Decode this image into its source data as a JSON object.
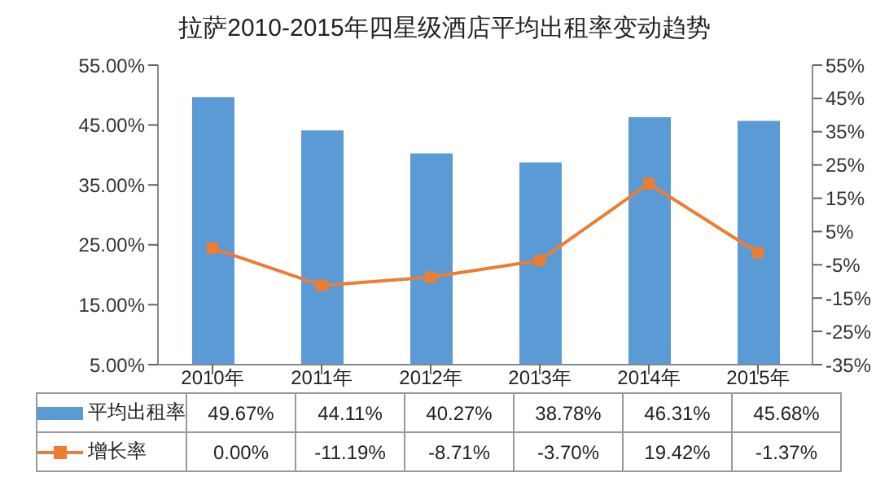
{
  "chart_data": {
    "type": "bar",
    "title": "拉萨2010-2015年四星级酒店平均出租率变动趋势",
    "categories": [
      "2010年",
      "2011年",
      "2012年",
      "2013年",
      "2014年",
      "2015年"
    ],
    "series": [
      {
        "name": "平均出租率",
        "color": "#5b9bd5",
        "values": [
          49.67,
          44.11,
          40.27,
          38.78,
          46.31,
          45.68
        ],
        "value_labels": [
          "49.67%",
          "44.11%",
          "40.27%",
          "38.78%",
          "46.31%",
          "45.68%"
        ]
      },
      {
        "name": "增长率",
        "type": "line",
        "axis": "y2",
        "color": "#ed7d31",
        "marker": "square",
        "values": [
          0.0,
          -11.19,
          -8.71,
          -3.7,
          19.42,
          -1.37
        ],
        "value_labels": [
          "0.00%",
          "-11.19%",
          "-8.71%",
          "-3.70%",
          "19.42%",
          "-1.37%"
        ]
      }
    ],
    "ylim": [
      5,
      55
    ],
    "yticks": [
      {
        "value": 5,
        "label": "5.00%"
      },
      {
        "value": 15,
        "label": "15.00%"
      },
      {
        "value": 25,
        "label": "25.00%"
      },
      {
        "value": 35,
        "label": "35.00%"
      },
      {
        "value": 45,
        "label": "45.00%"
      },
      {
        "value": 55,
        "label": "55.00%"
      }
    ],
    "y2lim": [
      -35,
      55
    ],
    "y2ticks": [
      {
        "value": -35,
        "label": "-35%"
      },
      {
        "value": -25,
        "label": "-25%"
      },
      {
        "value": -15,
        "label": "-15%"
      },
      {
        "value": -5,
        "label": "-5%"
      },
      {
        "value": 5,
        "label": "5%"
      },
      {
        "value": 15,
        "label": "15%"
      },
      {
        "value": 25,
        "label": "25%"
      },
      {
        "value": 35,
        "label": "35%"
      },
      {
        "value": 45,
        "label": "45%"
      },
      {
        "value": 55,
        "label": "55%"
      }
    ],
    "legend": "bottom"
  }
}
